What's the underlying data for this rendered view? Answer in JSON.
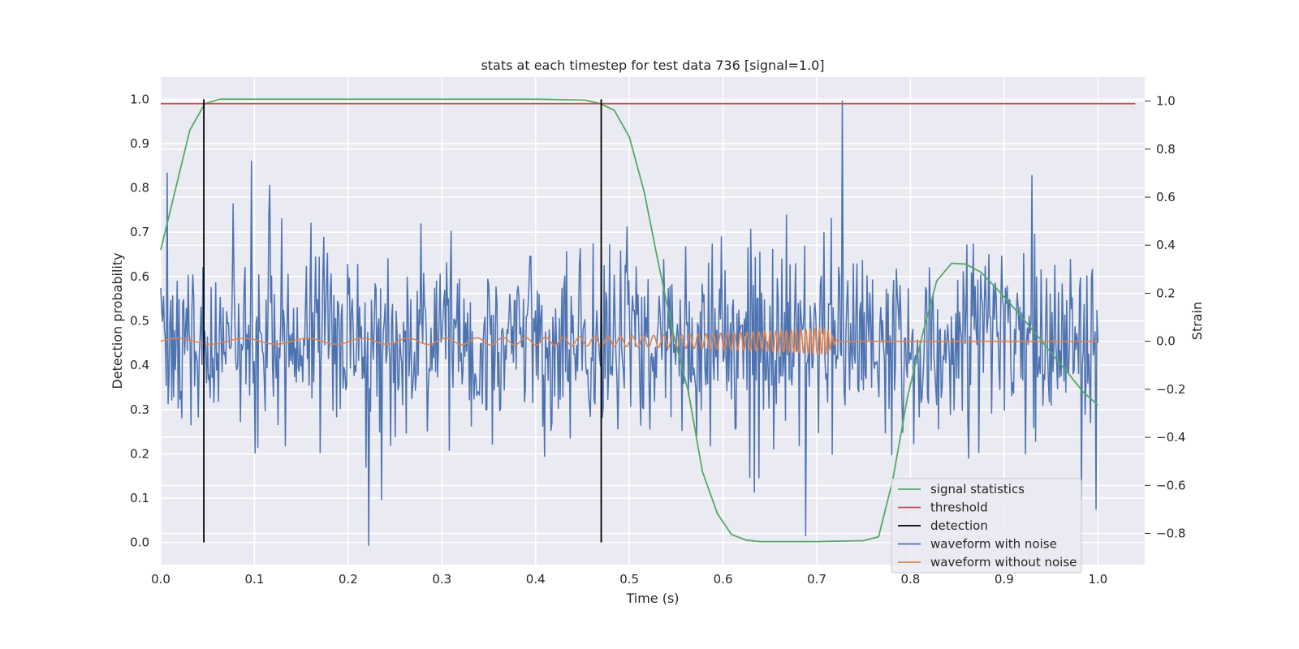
{
  "chart_data": {
    "type": "line",
    "title": "stats at each timestep for test data 736 [signal=1.0]",
    "xlabel": "Time (s)",
    "ylabel_left": "Detection probability",
    "ylabel_right": "Strain",
    "xlim": [
      0.0,
      1.05
    ],
    "ylim_left": [
      -0.05,
      1.05
    ],
    "ylim_right": [
      -0.93,
      1.1
    ],
    "x_ticks": [
      "0.0",
      "0.1",
      "0.2",
      "0.3",
      "0.4",
      "0.5",
      "0.6",
      "0.7",
      "0.8",
      "0.9",
      "1.0"
    ],
    "y_ticks_left": [
      "0.0",
      "0.1",
      "0.2",
      "0.3",
      "0.4",
      "0.5",
      "0.6",
      "0.7",
      "0.8",
      "0.9",
      "1.0"
    ],
    "y_ticks_right": [
      "−0.8",
      "−0.6",
      "−0.4",
      "−0.2",
      "0.0",
      "0.2",
      "0.4",
      "0.6",
      "0.8",
      "1.0"
    ],
    "grid": true,
    "background": "#eaeaf2",
    "legend_position": "lower-right",
    "threshold": {
      "name": "threshold",
      "value": 0.99,
      "x_range": [
        0.0,
        1.04
      ],
      "color": "#c44e52"
    },
    "detections": {
      "name": "detection",
      "x": [
        0.046,
        0.47
      ],
      "y_range": [
        0.0,
        1.0
      ],
      "color": "#000000"
    },
    "signal_statistics": {
      "name": "signal statistics",
      "color": "#55a868",
      "x": [
        0.0,
        0.031,
        0.047,
        0.063,
        0.094,
        0.2,
        0.3,
        0.4,
        0.453,
        0.469,
        0.484,
        0.5,
        0.516,
        0.531,
        0.547,
        0.563,
        0.578,
        0.594,
        0.609,
        0.625,
        0.641,
        0.7,
        0.75,
        0.766,
        0.781,
        0.797,
        0.813,
        0.828,
        0.844,
        0.859,
        0.875,
        0.891,
        0.906,
        0.922,
        0.938,
        0.953,
        0.969,
        0.984,
        1.0
      ],
      "y": [
        0.66,
        0.93,
        0.99,
        1.0,
        1.0,
        1.0,
        1.0,
        1.0,
        0.998,
        0.99,
        0.975,
        0.915,
        0.79,
        0.63,
        0.47,
        0.34,
        0.16,
        0.065,
        0.018,
        0.005,
        0.002,
        0.002,
        0.004,
        0.013,
        0.14,
        0.33,
        0.47,
        0.59,
        0.63,
        0.628,
        0.61,
        0.575,
        0.54,
        0.5,
        0.46,
        0.42,
        0.38,
        0.34,
        0.31
      ]
    },
    "waveform_with_noise": {
      "name": "waveform with noise",
      "color": "#4c72b0",
      "x_range": [
        0.0,
        1.0
      ],
      "n_points": 1024,
      "seed": 736,
      "spikes": [
        {
          "x": 0.007,
          "y": 0.7
        },
        {
          "x": 0.097,
          "y": 0.75
        },
        {
          "x": 0.222,
          "y": -0.85
        },
        {
          "x": 0.688,
          "y": -0.81
        },
        {
          "x": 0.727,
          "y": 1.0
        },
        {
          "x": 0.93,
          "y": 0.69
        },
        {
          "x": 0.998,
          "y": -0.7
        }
      ]
    },
    "waveform_without_noise": {
      "name": "waveform without noise",
      "color": "#dd8452",
      "x_range": [
        0.0,
        1.0
      ],
      "merger_time": 0.71,
      "chirp_start_frequency": 14,
      "chirp_end_frequency": 220,
      "amplitude_start": 0.012,
      "amplitude_peak": 0.055
    },
    "legend": [
      {
        "label": "signal statistics",
        "color": "#55a868"
      },
      {
        "label": "threshold",
        "color": "#c44e52"
      },
      {
        "label": "detection",
        "color": "#000000"
      },
      {
        "label": "waveform with noise",
        "color": "#4c72b0"
      },
      {
        "label": "waveform without noise",
        "color": "#dd8452"
      }
    ]
  }
}
